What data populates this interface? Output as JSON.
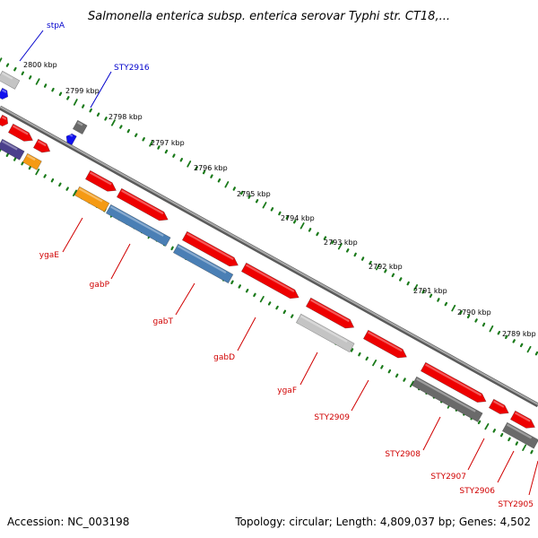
{
  "title": "Salmonella enterica subsp. enterica serovar Typhi str. CT18,...",
  "footer": {
    "accession": "Accession: NC_003198",
    "summary": "Topology: circular; Length: 4,809,037 bp; Genes: 4,502"
  },
  "colors": {
    "background": "#ffffff",
    "backbone": "#8c8c8c",
    "tick_dots": "#1a7a1a",
    "label_red": "#d00000",
    "label_blue": "#0000cc",
    "gene_red": "#ee0000",
    "gene_steelblue": "#4a7fb5",
    "gene_orange": "#f59a14",
    "gene_lightgray": "#c4c4c4",
    "gene_darkgray": "#6a6a6a",
    "gene_navy": "#4b3f8c",
    "gene_blue": "#1010ee"
  },
  "scale_labels": [
    "2800 kbp",
    "2799 kbp",
    "2798 kbp",
    "2797 kbp",
    "2796 kbp",
    "2795 kbp",
    "2794 kbp",
    "2793 kbp",
    "2792 kbp",
    "2791 kbp",
    "2790 kbp",
    "2789 kbp"
  ],
  "gene_labels": [
    {
      "name": "stpA",
      "color": "blue"
    },
    {
      "name": "STY2916",
      "color": "blue"
    },
    {
      "name": "ygaE",
      "color": "red"
    },
    {
      "name": "gabP",
      "color": "red"
    },
    {
      "name": "gabT",
      "color": "red"
    },
    {
      "name": "gabD",
      "color": "red"
    },
    {
      "name": "ygaF",
      "color": "red"
    },
    {
      "name": "STY2909",
      "color": "red"
    },
    {
      "name": "STY2908",
      "color": "red"
    },
    {
      "name": "STY2907",
      "color": "red"
    },
    {
      "name": "STY2906",
      "color": "red"
    },
    {
      "name": "STY2905",
      "color": "red"
    }
  ]
}
